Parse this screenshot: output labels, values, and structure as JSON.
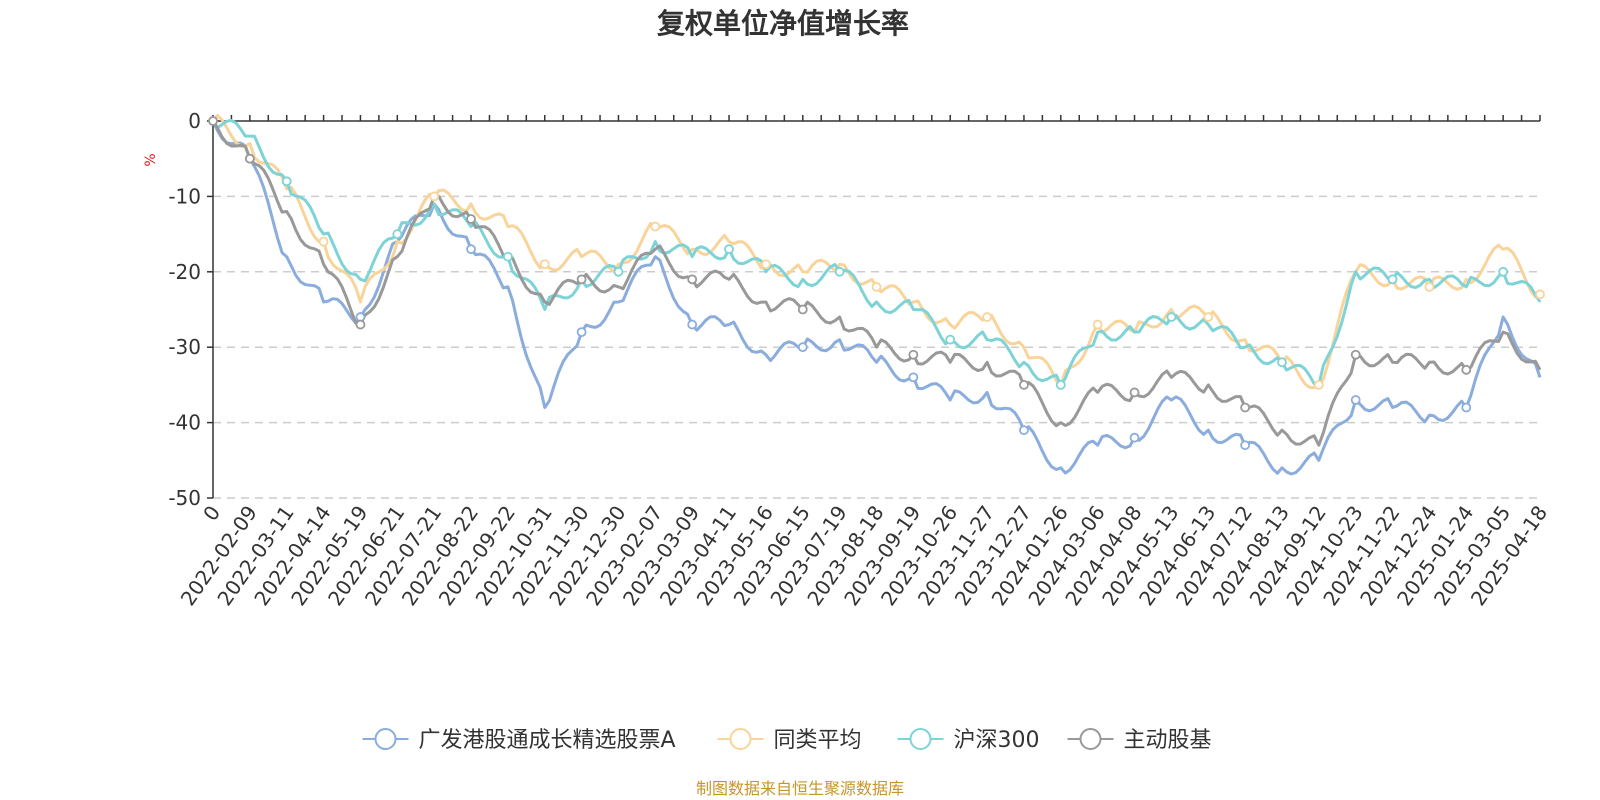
{
  "chart_data": {
    "type": "line",
    "title": "复权单位净值增长率",
    "ylabel": "%",
    "xlabel": "",
    "ylim": [
      -50,
      0
    ],
    "yticks": [
      0,
      -10,
      -20,
      -30,
      -40,
      -50
    ],
    "grid": "horizontal-dashed",
    "legend_position": "bottom-center",
    "x_start_label": "0",
    "x": [
      "2022-02-09",
      "2022-03-11",
      "2022-04-14",
      "2022-05-19",
      "2022-06-21",
      "2022-07-21",
      "2022-08-22",
      "2022-09-22",
      "2022-10-31",
      "2022-11-30",
      "2022-12-30",
      "2023-02-07",
      "2023-03-09",
      "2023-04-11",
      "2023-05-16",
      "2023-06-15",
      "2023-07-19",
      "2023-08-18",
      "2023-09-19",
      "2023-10-26",
      "2023-11-27",
      "2023-12-27",
      "2024-01-26",
      "2024-03-06",
      "2024-04-08",
      "2024-05-13",
      "2024-06-13",
      "2024-07-12",
      "2024-08-13",
      "2024-09-12",
      "2024-10-23",
      "2024-11-22",
      "2024-12-24",
      "2025-01-24",
      "2025-03-05",
      "2025-04-18"
    ],
    "series": [
      {
        "name": "广发港股通成长精选股票A",
        "color": "#8aaddd",
        "values": [
          -5,
          -18,
          -24,
          -26,
          -16,
          -11,
          -17,
          -22,
          -38,
          -28,
          -24,
          -18,
          -27,
          -27,
          -31,
          -30,
          -29,
          -32,
          -34,
          -37,
          -36,
          -41,
          -46,
          -43,
          -42,
          -37,
          -41,
          -43,
          -46,
          -45,
          -37,
          -38,
          -39,
          -38,
          -26,
          -34
        ]
      },
      {
        "name": "同类平均",
        "color": "#f9d49a",
        "values": [
          -3,
          -9,
          -16,
          -24,
          -16,
          -10,
          -11,
          -14,
          -19,
          -18,
          -19,
          -14,
          -17,
          -16,
          -19,
          -20,
          -19,
          -22,
          -24,
          -27,
          -26,
          -30,
          -35,
          -27,
          -28,
          -25,
          -26,
          -29,
          -32,
          -35,
          -20,
          -21,
          -22,
          -21,
          -17,
          -23
        ]
      },
      {
        "name": "沪深300",
        "color": "#7ed3d7",
        "values": [
          -2,
          -8,
          -15,
          -21,
          -15,
          -11,
          -14,
          -18,
          -25,
          -21,
          -20,
          -16,
          -18,
          -17,
          -20,
          -21,
          -20,
          -24,
          -25,
          -29,
          -29,
          -32,
          -35,
          -28,
          -28,
          -26,
          -27,
          -30,
          -32,
          -35,
          -20,
          -21,
          -21,
          -22,
          -20,
          -24
        ]
      },
      {
        "name": "主动股基",
        "color": "#999999",
        "values": [
          -5,
          -12,
          -19,
          -27,
          -18,
          -10,
          -13,
          -18,
          -24,
          -21,
          -22,
          -17,
          -21,
          -21,
          -24,
          -25,
          -26,
          -30,
          -31,
          -32,
          -32,
          -35,
          -40,
          -36,
          -36,
          -34,
          -35,
          -38,
          -41,
          -43,
          -31,
          -32,
          -32,
          -33,
          -28,
          -33
        ]
      }
    ]
  },
  "source_note": "制图数据来自恒生聚源数据库"
}
